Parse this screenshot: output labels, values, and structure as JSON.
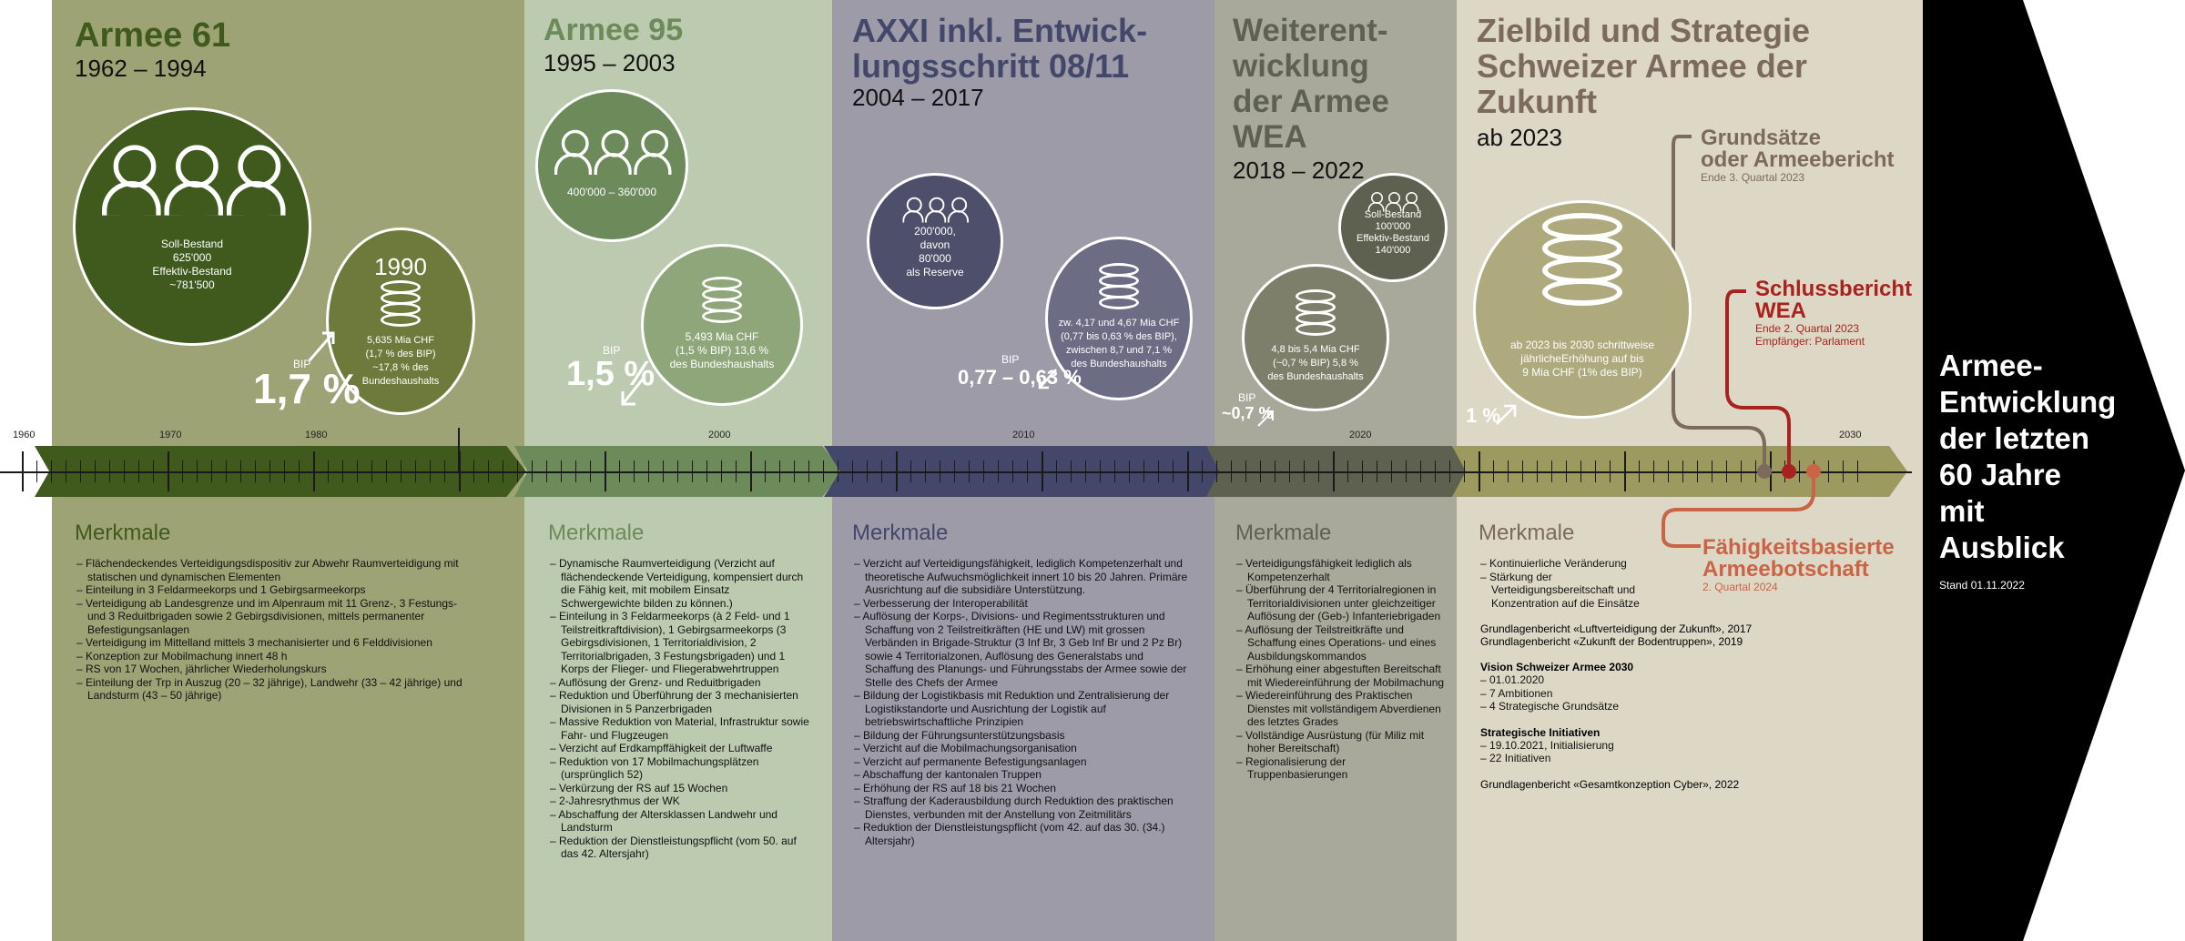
{
  "colors": {
    "era1_bg": "#9ea375",
    "era2_bg": "#bccbaf",
    "era3_bg": "#9d9ba8",
    "era4_bg": "#a8a99b",
    "era5_bg": "#ddd7c6",
    "arrow": "#000000",
    "accent_red": "#a8231f",
    "accent_salmon": "#c96446",
    "accent_brown": "#7c6a5f"
  },
  "eras": [
    {
      "title": "Armee 61",
      "years": "1962 – 1994",
      "circle1": "Soll-Bestand\n625'000\nEffektiv-Bestand\n~781'500",
      "circle2_year": "1990",
      "circle2": "5,635 Mia CHF\n(1,7 % des BIP)\n~17,8 % des\nBundeshaushalts",
      "bip_label": "BIP",
      "bip_value": "1,7 %",
      "merkmale_title": "Merkmale",
      "merkmale": [
        "Flächendeckendes Verteidigungsdispositiv zur Abwehr Raumverteidigung mit statischen und dynamischen Elementen",
        "Einteilung in 3 Feldarmeekorps und 1 Gebirgsarmeekorps",
        "Verteidigung ab Landesgrenze und im Alpenraum mit 11 Grenz-, 3 Festungs- und 3 Reduitbrigaden sowie 2 Gebirgsdivisionen, mittels permanenter Befestigungsanlagen",
        "Verteidigung im Mittelland mittels 3 mechanisierter und 6 Felddivisionen",
        "Konzeption zur Mobilmachung innert 48 h",
        "RS von 17 Wochen, jährlicher Wiederholungskurs",
        "Einteilung der Trp in Auszug (20 – 32 jährige), Landwehr (33 – 42 jährige) und Landsturm (43 – 50 jährige)"
      ]
    },
    {
      "title": "Armee 95",
      "years": "1995 – 2003",
      "circle1": "400'000 – 360'000",
      "circle2": "5,493 Mia CHF\n(1,5 % BIP) 13,6 %\ndes Bundeshaushalts",
      "bip_label": "BIP",
      "bip_value": "1,5 %",
      "merkmale_title": "Merkmale",
      "merkmale": [
        "Dynamische Raumverteidigung (Verzicht auf flächendeckende Verteidigung, kompensiert durch die Fähig keit, mit mobilem Einsatz Schwergewichte bilden zu können.)",
        "Einteilung in 3 Feldarmeekorps (à 2 Feld- und 1 Teilstreitkraftdivision), 1 Gebirgsarmeekorps (3 Gebirgsdivisionen, 1 Territorialdivision, 2 Territorialbrigaden, 3 Festungsbrigaden) und 1 Korps der Flieger- und Fliegerabwehrtruppen",
        "Auflösung der Grenz- und Reduitbrigaden",
        "Reduktion und Überführung der 3 mechanisierten Divisionen in 5 Panzerbrigaden",
        "Massive Reduktion von Material, Infrastruktur sowie Fahr- und Flugzeugen",
        "Verzicht auf Erdkampffähigkeit der Luftwaffe",
        "Reduktion von 17 Mobilmachungsplätzen (ursprünglich 52)",
        "Verkürzung der RS auf 15 Wochen",
        "2-Jahresrythmus der WK",
        "Abschaffung der Altersklassen Landwehr und Landsturm",
        "Reduktion der Dienstleistungspflicht (vom 50. auf das 42. Altersjahr)"
      ]
    },
    {
      "title": "AXXI inkl. Entwick-\nlungsschritt 08/11",
      "years": "2004 – 2017",
      "circle1": "200'000,\ndavon\n80'000\nals Reserve",
      "circle2": "zw. 4,17 und 4,67 Mia CHF\n(0,77 bis 0,63 % des BIP),\nzwischen 8,7 und 7,1 %\ndes Bundeshaushalts",
      "bip_label": "BIP",
      "bip_value": "0,77 – 0,63 %",
      "merkmale_title": "Merkmale",
      "merkmale": [
        "Verzicht auf Verteidigungsfähigkeit, lediglich Kompetenzerhalt und theoretische Aufwuchsmöglichkeit innert 10 bis 20 Jahren. Primäre Ausrichtung auf die subsidiäre Unterstützung.",
        "Verbesserung der Interoperabilität",
        "Auflösung der Korps-, Divisions- und Regimentsstrukturen und Schaffung von 2 Teilstreitkräften (HE und LW) mit grossen Verbänden in Brigade-Struktur (3 Inf Br, 3 Geb Inf Br und 2 Pz Br) sowie 4 Territorialzonen, Auflösung des Generalstabs und Schaffung des Planungs- und Führungsstabs der Armee sowie der Stelle des Chefs der Armee",
        "Bildung der Logistikbasis mit Reduktion und Zentralisierung der Logistikstandorte und Ausrichtung der Logistik auf betriebswirtschaftliche Prinzipien",
        "Bildung der Führungsunterstützungsbasis",
        "Verzicht auf die Mobilmachungsorganisation",
        "Verzicht auf permanente Befestigungsanlagen",
        "Abschaffung der kantonalen Truppen",
        "Erhöhung der RS auf 18 bis 21 Wochen",
        "Straffung der Kaderausbildung durch Reduktion des praktischen Dienstes, verbunden mit der Anstellung von Zeitmilitärs",
        "Reduktion der Dienstleistungspflicht (vom 42. auf das 30. (34.) Altersjahr)"
      ]
    },
    {
      "title": "Weiterent-\nwicklung\nder Armee\nWEA",
      "years": "2018 – 2022",
      "circle1": "Soll-Bestand\n100'000\nEffektiv-Bestand\n140'000",
      "circle2": "4,8 bis 5,4 Mia CHF\n(~0,7 % BIP) 5,8 %\ndes Bundeshaushalts",
      "bip_label": "BIP",
      "bip_value": "~0,7 %",
      "merkmale_title": "Merkmale",
      "merkmale": [
        "Verteidigungsfähigkeit lediglich als Kompetenzerhalt",
        "Überführung der 4 Territorialregionen in Territorialdivisionen unter gleichzeitiger Auflösung der (Geb-) Infanteriebrigaden",
        "Auflösung der Teilstreitkräfte und Schaffung eines Operations- und eines Ausbildungskommandos",
        "Erhöhung einer abgestuften Bereitschaft mit Wiedereinführung der Mobilmachung",
        "Wiedereinführung des Praktischen Dienstes mit vollständigem Abverdienen des letztes Grades",
        "Vollständige Ausrüstung (für Miliz mit hoher Bereitschaft)",
        "Regionalisierung der Truppenbasierungen"
      ]
    },
    {
      "title": "Zielbild und Strategie\nSchweizer Armee der\nZukunft",
      "years": "ab 2023",
      "circle2": "ab 2023 bis 2030 schrittweise\njährlicheErhöhung auf bis\n9 Mia CHF (1% des BIP)",
      "bip_value": "1 %",
      "merkmale_title": "Merkmale",
      "merkmale": [
        "Kontinuierliche Veränderung",
        "Stärkung der Verteidigungsbereitschaft und Konzentration auf die Einsätze"
      ],
      "extra": {
        "grund1": "Grundlagenbericht «Luftverteidigung der Zukunft», 2017",
        "grund2": "Grundlagenbericht «Zukunft der Bodentruppen», 2019",
        "vision_title": "Vision Schweizer Armee 2030",
        "vision_items": [
          "01.01.2020",
          "7 Ambitionen",
          "4 Strategische Grundsätze"
        ],
        "init_title": "Strategische Initiativen",
        "init_items": [
          "19.10.2021, Initialisierung",
          "22 Initiativen"
        ],
        "grund3": "Grundlagenbericht «Gesamtkonzeption Cyber», 2022"
      },
      "callouts": [
        {
          "title": "Grundsätze\noder Armeebericht",
          "sub": "Ende 3. Quartal 2023"
        },
        {
          "title": "Schlussbericht\nWEA",
          "sub": "Ende 2. Quartal 2023\nEmpfänger: Parlament"
        },
        {
          "title": "Fähigkeitsbasierte\nArmeebotschaft",
          "sub": "2. Quartal 2024"
        }
      ]
    }
  ],
  "timeline": {
    "years": [
      "1960",
      "1970",
      "1980",
      "2000",
      "2010",
      "2020",
      "2030"
    ]
  },
  "arrow": {
    "title": "Armee-\nEntwicklung\nder letzten\n60 Jahre\nmit Ausblick",
    "stand": "Stand 01.11.2022"
  }
}
